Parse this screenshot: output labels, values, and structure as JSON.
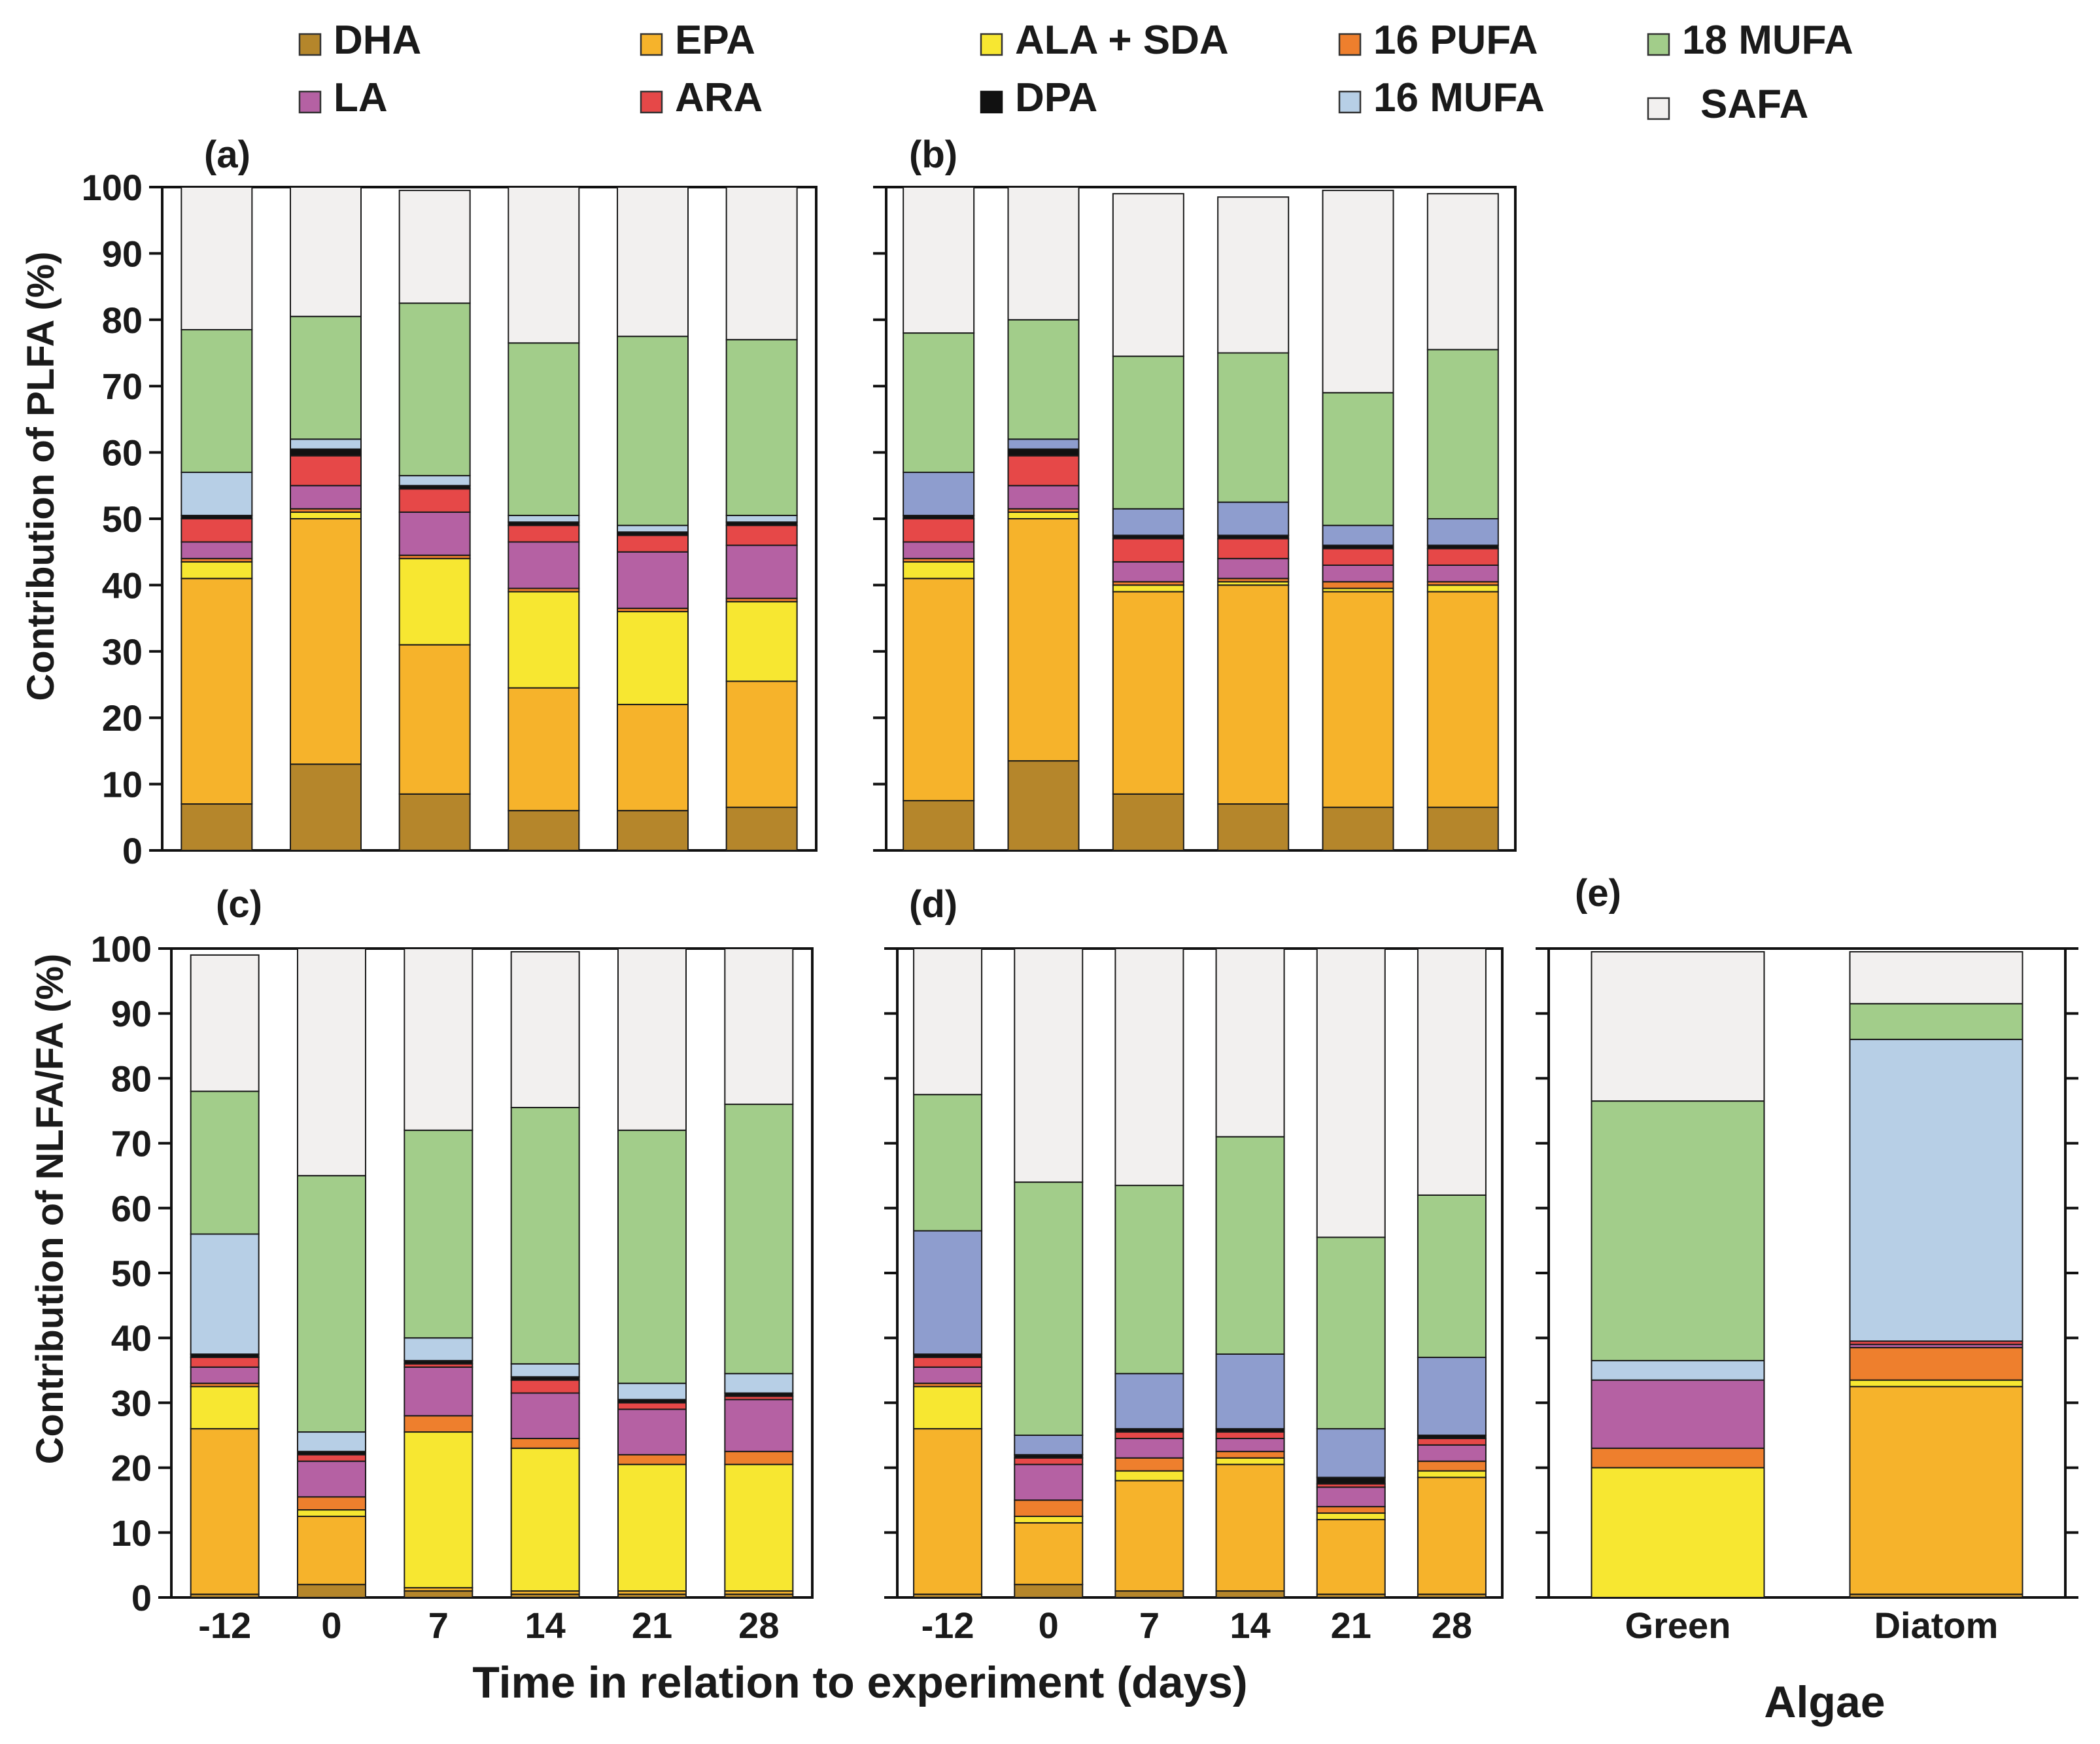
{
  "figure": {
    "y_label_top": "Contribution of PLFA (%)",
    "y_label_bottom": "Contribution of NLFA/FA (%)",
    "x_label_time": "Time in relation to experiment (days)",
    "x_label_algae": "Algae"
  },
  "legend": [
    {
      "key": "DHA",
      "label": "DHA",
      "color": "#b5862b"
    },
    {
      "key": "EPA",
      "label": "EPA",
      "color": "#f6b32b"
    },
    {
      "key": "ALASDA",
      "label": "ALA + SDA",
      "color": "#f7e731"
    },
    {
      "key": "PUFA16",
      "label": "16 PUFA",
      "color": "#ee7f2d"
    },
    {
      "key": "MUFA18",
      "label": "18 MUFA",
      "color": "#a2cd8a"
    },
    {
      "key": "LA",
      "label": "LA",
      "color": "#b561a3"
    },
    {
      "key": "ARA",
      "label": "ARA",
      "color": "#e64848"
    },
    {
      "key": "DPA",
      "label": "DPA",
      "color": "#111111"
    },
    {
      "key": "MUFA16",
      "label": "16 MUFA",
      "color": "#b7cfe6"
    },
    {
      "key": "SAFA",
      "label": "SAFA",
      "color": "#f2f0ef"
    }
  ],
  "chart_data": [
    {
      "panel": "(a)",
      "type": "bar",
      "stacked": true,
      "categories": [
        "-12",
        "0",
        "7",
        "14",
        "21",
        "28"
      ],
      "ylim": [
        0,
        100
      ],
      "yticks": [
        0,
        10,
        20,
        30,
        40,
        50,
        60,
        70,
        80,
        90,
        100
      ],
      "ylabel": "Contribution of PLFA (%)",
      "mufa16_color": "#b7cfe6",
      "series": [
        {
          "key": "DHA",
          "values": [
            7,
            13,
            8.5,
            6,
            6,
            6.5
          ]
        },
        {
          "key": "EPA",
          "values": [
            34,
            37,
            22.5,
            18.5,
            16,
            19
          ]
        },
        {
          "key": "ALASDA",
          "values": [
            2.5,
            1,
            13,
            14.5,
            14,
            12
          ]
        },
        {
          "key": "PUFA16",
          "values": [
            0.5,
            0.5,
            0.5,
            0.5,
            0.5,
            0.5
          ]
        },
        {
          "key": "LA",
          "values": [
            2.5,
            3.5,
            6.5,
            7,
            8.5,
            8
          ]
        },
        {
          "key": "ARA",
          "values": [
            3.5,
            4.5,
            3.5,
            2.5,
            2.5,
            3
          ]
        },
        {
          "key": "DPA",
          "values": [
            0.5,
            1,
            0.5,
            0.5,
            0.5,
            0.5
          ]
        },
        {
          "key": "MUFA16",
          "values": [
            6.5,
            1.5,
            1.5,
            1,
            1,
            1
          ]
        },
        {
          "key": "MUFA18",
          "values": [
            21.5,
            18.5,
            26,
            26,
            28.5,
            26.5
          ]
        },
        {
          "key": "SAFA",
          "values": [
            21.5,
            19.5,
            17,
            23.5,
            22.5,
            23
          ]
        }
      ]
    },
    {
      "panel": "(b)",
      "type": "bar",
      "stacked": true,
      "categories": [
        "-12",
        "0",
        "7",
        "14",
        "21",
        "28"
      ],
      "ylim": [
        0,
        100
      ],
      "yticks": [
        0,
        10,
        20,
        30,
        40,
        50,
        60,
        70,
        80,
        90,
        100
      ],
      "mufa16_color": "#8e9dce",
      "series": [
        {
          "key": "DHA",
          "values": [
            7.5,
            13.5,
            8.5,
            7,
            6.5,
            6.5
          ]
        },
        {
          "key": "EPA",
          "values": [
            33.5,
            36.5,
            30.5,
            33,
            32.5,
            32.5
          ]
        },
        {
          "key": "ALASDA",
          "values": [
            2.5,
            1,
            1,
            0.5,
            0.5,
            1
          ]
        },
        {
          "key": "PUFA16",
          "values": [
            0.5,
            0.5,
            0.5,
            0.5,
            1,
            0.5
          ]
        },
        {
          "key": "LA",
          "values": [
            2.5,
            3.5,
            3,
            3,
            2.5,
            2.5
          ]
        },
        {
          "key": "ARA",
          "values": [
            3.5,
            4.5,
            3.5,
            3,
            2.5,
            2.5
          ]
        },
        {
          "key": "DPA",
          "values": [
            0.5,
            1,
            0.5,
            0.5,
            0.5,
            0.5
          ]
        },
        {
          "key": "MUFA16",
          "values": [
            6.5,
            1.5,
            4,
            5,
            3,
            4
          ]
        },
        {
          "key": "MUFA18",
          "values": [
            21,
            18,
            23,
            22.5,
            20,
            25.5
          ]
        },
        {
          "key": "SAFA",
          "values": [
            22,
            20,
            24.5,
            23.5,
            30.5,
            23.5
          ]
        }
      ]
    },
    {
      "panel": "(c)",
      "type": "bar",
      "stacked": true,
      "categories": [
        "-12",
        "0",
        "7",
        "14",
        "21",
        "28"
      ],
      "ylim": [
        0,
        100
      ],
      "yticks": [
        0,
        10,
        20,
        30,
        40,
        50,
        60,
        70,
        80,
        90,
        100
      ],
      "ylabel": "Contribution of NLFA/FA (%)",
      "xlabel": "Time in relation to experiment (days)",
      "mufa16_color": "#b7cfe6",
      "series": [
        {
          "key": "DHA",
          "values": [
            0.5,
            2,
            1,
            0.5,
            0.5,
            0.5
          ]
        },
        {
          "key": "EPA",
          "values": [
            25.5,
            10.5,
            0.5,
            0.5,
            0.5,
            0.5
          ]
        },
        {
          "key": "ALASDA",
          "values": [
            6.5,
            1,
            24,
            22,
            19.5,
            19.5
          ]
        },
        {
          "key": "PUFA16",
          "values": [
            0.5,
            2,
            2.5,
            1.5,
            1.5,
            2
          ]
        },
        {
          "key": "LA",
          "values": [
            2.5,
            5.5,
            7.5,
            7,
            7,
            8
          ]
        },
        {
          "key": "ARA",
          "values": [
            1.5,
            1,
            0.5,
            2,
            1,
            0.5
          ]
        },
        {
          "key": "DPA",
          "values": [
            0.5,
            0.5,
            0.5,
            0.5,
            0.5,
            0.5
          ]
        },
        {
          "key": "MUFA16",
          "values": [
            18.5,
            3,
            3.5,
            2,
            2.5,
            3
          ]
        },
        {
          "key": "MUFA18",
          "values": [
            22,
            39.5,
            32,
            39.5,
            39,
            41.5
          ]
        },
        {
          "key": "SAFA",
          "values": [
            21,
            35,
            28,
            24,
            28,
            24
          ]
        }
      ]
    },
    {
      "panel": "(d)",
      "type": "bar",
      "stacked": true,
      "categories": [
        "-12",
        "0",
        "7",
        "14",
        "21",
        "28"
      ],
      "ylim": [
        0,
        100
      ],
      "yticks": [
        0,
        10,
        20,
        30,
        40,
        50,
        60,
        70,
        80,
        90,
        100
      ],
      "mufa16_color": "#8e9dce",
      "series": [
        {
          "key": "DHA",
          "values": [
            0.5,
            2,
            1,
            1,
            0.5,
            0.5
          ]
        },
        {
          "key": "EPA",
          "values": [
            25.5,
            9.5,
            17,
            19.5,
            11.5,
            18
          ]
        },
        {
          "key": "ALASDA",
          "values": [
            6.5,
            1,
            1.5,
            1,
            1,
            1
          ]
        },
        {
          "key": "PUFA16",
          "values": [
            0.5,
            2.5,
            2,
            1,
            1,
            1.5
          ]
        },
        {
          "key": "LA",
          "values": [
            2.5,
            5.5,
            3,
            2,
            3,
            2.5
          ]
        },
        {
          "key": "ARA",
          "values": [
            1.5,
            1,
            1,
            1,
            0.5,
            1
          ]
        },
        {
          "key": "DPA",
          "values": [
            0.5,
            0.5,
            0.5,
            0.5,
            1,
            0.5
          ]
        },
        {
          "key": "MUFA16",
          "values": [
            19,
            3,
            8.5,
            11.5,
            7.5,
            12
          ]
        },
        {
          "key": "MUFA18",
          "values": [
            21,
            39,
            29,
            33.5,
            29.5,
            25
          ]
        },
        {
          "key": "SAFA",
          "values": [
            22.5,
            36,
            36.5,
            29,
            44.5,
            38
          ]
        }
      ]
    },
    {
      "panel": "(e)",
      "type": "bar",
      "stacked": true,
      "categories": [
        "Green",
        "Diatom"
      ],
      "ylim": [
        0,
        100
      ],
      "yticks": [
        0,
        10,
        20,
        30,
        40,
        50,
        60,
        70,
        80,
        90,
        100
      ],
      "xlabel": "Algae",
      "mufa16_color": "#b7cfe6",
      "series": [
        {
          "key": "DHA",
          "values": [
            0,
            0.5
          ]
        },
        {
          "key": "EPA",
          "values": [
            0,
            32
          ]
        },
        {
          "key": "ALASDA",
          "values": [
            20,
            1
          ]
        },
        {
          "key": "PUFA16",
          "values": [
            3,
            5
          ]
        },
        {
          "key": "LA",
          "values": [
            10.5,
            0.5
          ]
        },
        {
          "key": "ARA",
          "values": [
            0,
            0.5
          ]
        },
        {
          "key": "DPA",
          "values": [
            0,
            0
          ]
        },
        {
          "key": "MUFA16",
          "values": [
            3,
            46.5
          ]
        },
        {
          "key": "MUFA18",
          "values": [
            40,
            5.5
          ]
        },
        {
          "key": "SAFA",
          "values": [
            23,
            8
          ]
        }
      ]
    }
  ]
}
